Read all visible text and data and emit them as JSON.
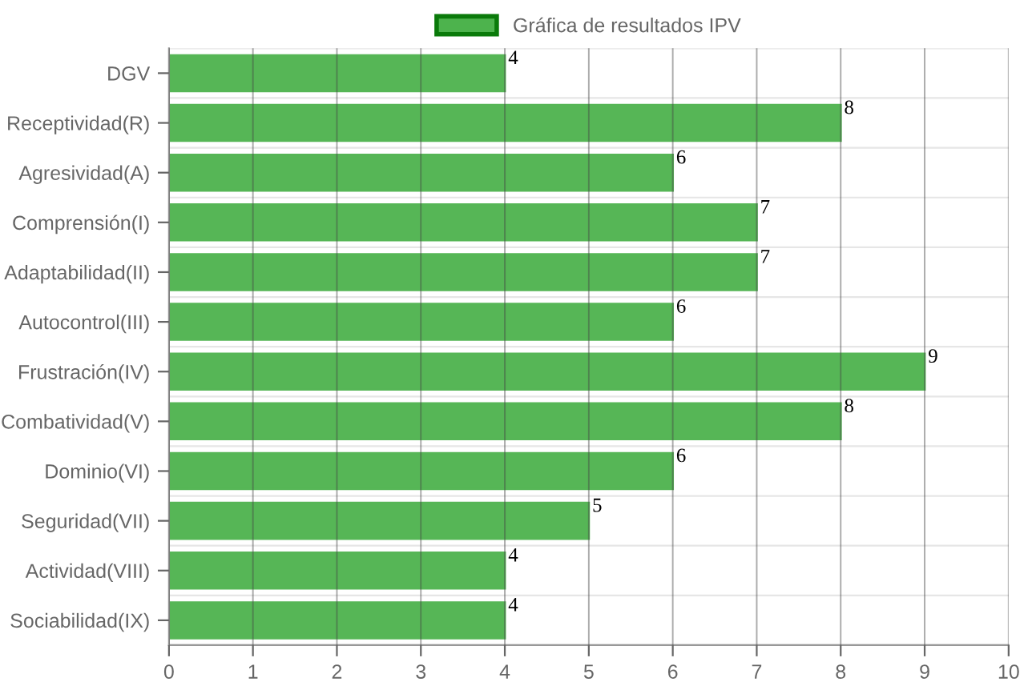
{
  "chart_data": {
    "type": "bar",
    "orientation": "horizontal",
    "categories": [
      "DGV",
      "Receptividad(R)",
      "Agresividad(A)",
      "Comprensión(I)",
      "Adaptabilidad(II)",
      "Autocontrol(III)",
      "Frustración(IV)",
      "Combatividad(V)",
      "Dominio(VI)",
      "Seguridad(VII)",
      "Actividad(VIII)",
      "Sociabilidad(IX)"
    ],
    "series": [
      {
        "name": "Gráfica de resultados IPV",
        "color": "#4db34d",
        "values": [
          4,
          8,
          6,
          7,
          7,
          6,
          9,
          8,
          6,
          5,
          4,
          4
        ]
      }
    ],
    "xlim": [
      0,
      10
    ],
    "xticks": [
      0,
      1,
      2,
      3,
      4,
      5,
      6,
      7,
      8,
      9,
      10
    ],
    "grid": true,
    "legend": "top",
    "data_labels": true
  }
}
